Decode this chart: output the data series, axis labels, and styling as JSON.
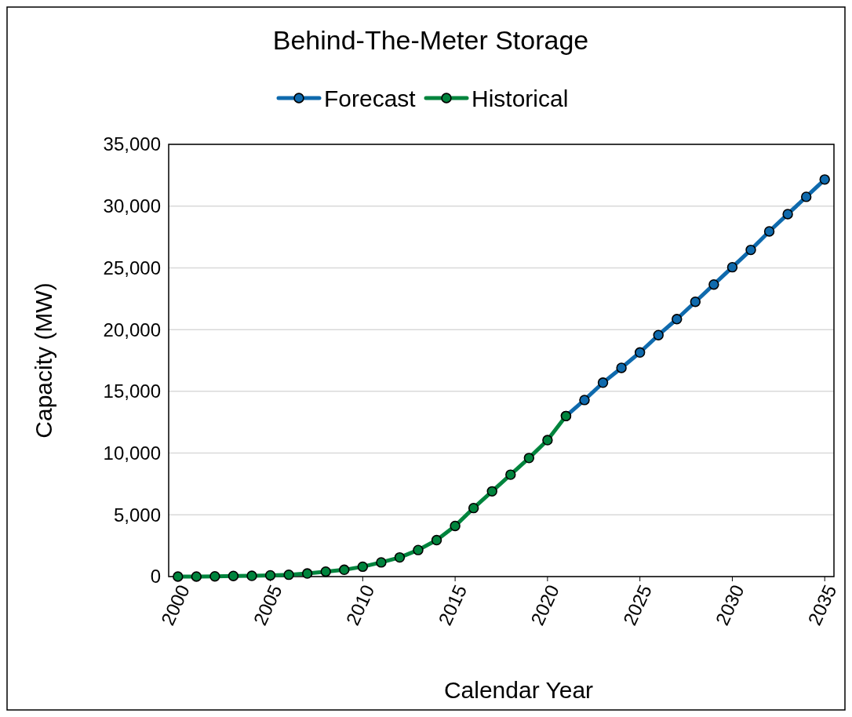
{
  "chart_data": {
    "type": "line",
    "title": "Behind-The-Meter Storage",
    "xlabel": "Calendar Year",
    "ylabel": "Capacity (MW)",
    "xlim": [
      1999.5,
      2035.5
    ],
    "xticks": [
      2000,
      2005,
      2010,
      2015,
      2020,
      2025,
      2030,
      2035
    ],
    "ylim": [
      0,
      35000
    ],
    "yticks": [
      {
        "value": 0,
        "label": "0"
      },
      {
        "value": 5000,
        "label": "5,000"
      },
      {
        "value": 10000,
        "label": "10,000"
      },
      {
        "value": 15000,
        "label": "15,000"
      },
      {
        "value": 20000,
        "label": "20,000"
      },
      {
        "value": 25000,
        "label": "25,000"
      },
      {
        "value": 30000,
        "label": "30,000"
      },
      {
        "value": 35000,
        "label": "35,000"
      }
    ],
    "grid": "y",
    "legend": "top",
    "marker": "circle",
    "line_style": "solid",
    "series": [
      {
        "name": "Forecast",
        "color": "#0f6aad",
        "x": [
          2021,
          2022,
          2023,
          2024,
          2025,
          2026,
          2027,
          2028,
          2029,
          2030,
          2031,
          2032,
          2033,
          2034,
          2035
        ],
        "values": [
          13000,
          14300,
          15700,
          16900,
          18150,
          19550,
          20850,
          22250,
          23650,
          25050,
          26450,
          27950,
          29350,
          30750,
          32150
        ]
      },
      {
        "name": "Historical",
        "color": "#00843d",
        "x": [
          2000,
          2001,
          2002,
          2003,
          2004,
          2005,
          2006,
          2007,
          2008,
          2009,
          2010,
          2011,
          2012,
          2013,
          2014,
          2015,
          2016,
          2017,
          2018,
          2019,
          2020,
          2021
        ],
        "values": [
          0,
          0,
          20,
          50,
          60,
          100,
          150,
          250,
          400,
          550,
          800,
          1150,
          1550,
          2150,
          2950,
          4100,
          5550,
          6900,
          8250,
          9600,
          11050,
          13000
        ]
      }
    ]
  }
}
